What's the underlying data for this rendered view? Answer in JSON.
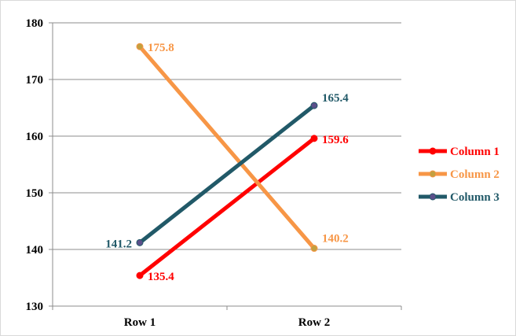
{
  "chart_data": {
    "type": "line",
    "categories": [
      "Row 1",
      "Row 2"
    ],
    "ylim": [
      130,
      180
    ],
    "yticks": [
      130,
      140,
      150,
      160,
      170,
      180
    ],
    "grid": true,
    "legend_position": "right",
    "series": [
      {
        "name": "Column 1",
        "values": [
          135.4,
          159.6
        ],
        "labels": [
          "135.4",
          "159.6"
        ],
        "color": "#ff0000",
        "marker_color": "#ff0000"
      },
      {
        "name": "Column 2",
        "values": [
          175.8,
          140.2
        ],
        "labels": [
          "175.8",
          "140.2"
        ],
        "color": "#f79646",
        "marker_color": "#c3a040"
      },
      {
        "name": "Column 3",
        "values": [
          141.2,
          165.4
        ],
        "labels": [
          "141.2",
          "165.4"
        ],
        "color": "#215968",
        "marker_color": "#5b4f8a"
      }
    ]
  }
}
